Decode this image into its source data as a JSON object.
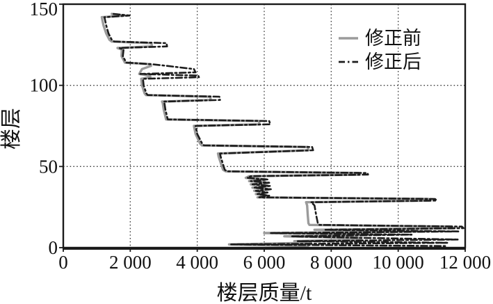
{
  "figure": {
    "background": "#ffffff",
    "axis_color": "#1a1a1a",
    "grid_color": "#3a3a3a",
    "text_color": "#111111"
  },
  "chart_data": {
    "type": "line",
    "title": "",
    "xlabel": "楼层质量/t",
    "ylabel": "楼层",
    "xlim": [
      0,
      12000
    ],
    "ylim": [
      0,
      150
    ],
    "x_ticks": [
      0,
      2000,
      4000,
      6000,
      8000,
      10000,
      12000
    ],
    "x_tick_labels": [
      "0",
      "2 000",
      "4 000",
      "6 000",
      "8 000",
      "10 000",
      "12 000"
    ],
    "y_ticks": [
      0,
      50,
      100,
      150
    ],
    "y_tick_labels": [
      "0",
      "50",
      "100",
      "150"
    ],
    "grid": {
      "style": "dotted",
      "x_at": [
        2000,
        4000,
        6000,
        8000,
        10000
      ],
      "y_at": [
        50,
        100
      ]
    },
    "legend_position": "upper-right-inside",
    "point_format": "[floor, mass_t]",
    "series": [
      {
        "name": "修正前",
        "color": "#9b9b9b",
        "line_style": "solid",
        "line_width": 3.4,
        "points": [
          [
            144,
            1450
          ],
          [
            143,
            1840
          ],
          [
            142,
            1150
          ],
          [
            137,
            1200
          ],
          [
            132,
            1280
          ],
          [
            128,
            1380
          ],
          [
            127,
            1450
          ],
          [
            126,
            2630
          ],
          [
            124,
            2650
          ],
          [
            123,
            1620
          ],
          [
            122,
            1750
          ],
          [
            118,
            1740
          ],
          [
            114,
            1840
          ],
          [
            113,
            2600
          ],
          [
            112,
            2620
          ],
          [
            110,
            2350
          ],
          [
            107,
            2270
          ],
          [
            106,
            2590
          ],
          [
            105,
            2600
          ],
          [
            104,
            2330
          ],
          [
            100,
            2350
          ],
          [
            95,
            2430
          ],
          [
            94,
            2470
          ],
          [
            93,
            4390
          ],
          [
            91,
            4400
          ],
          [
            90,
            2950
          ],
          [
            89,
            2970
          ],
          [
            85,
            3000
          ],
          [
            79,
            3070
          ],
          [
            78,
            5840
          ],
          [
            76,
            5860
          ],
          [
            75,
            3900
          ],
          [
            70,
            3950
          ],
          [
            64,
            4090
          ],
          [
            63,
            4140
          ],
          [
            62,
            7300
          ],
          [
            60,
            7320
          ],
          [
            58,
            4620
          ],
          [
            56,
            4640
          ],
          [
            48,
            4770
          ],
          [
            47,
            4850
          ],
          [
            46,
            8820
          ],
          [
            45,
            8840
          ],
          [
            44,
            5550
          ],
          [
            43,
            5450
          ],
          [
            42,
            6050
          ],
          [
            41,
            5550
          ],
          [
            40,
            6100
          ],
          [
            39,
            5600
          ],
          [
            38,
            6130
          ],
          [
            37,
            5650
          ],
          [
            36,
            6150
          ],
          [
            35,
            5700
          ],
          [
            34,
            6050
          ],
          [
            33,
            5750
          ],
          [
            32,
            6100
          ],
          [
            31,
            5800
          ],
          [
            30,
            10900
          ],
          [
            29,
            10950
          ],
          [
            28,
            7250
          ],
          [
            26,
            7280
          ],
          [
            20,
            7300
          ],
          [
            15,
            7320
          ],
          [
            14,
            7350
          ],
          [
            13,
            11600
          ],
          [
            12,
            11650
          ],
          [
            11,
            7500
          ],
          [
            10,
            10800
          ],
          [
            9,
            6000
          ],
          [
            8,
            9500
          ],
          [
            7,
            6600
          ],
          [
            6,
            8800
          ],
          [
            5,
            8900
          ],
          [
            4,
            6900
          ],
          [
            3,
            7400
          ],
          [
            2,
            4950
          ],
          [
            1,
            7300
          ]
        ]
      },
      {
        "name": "修正后",
        "color": "#1c1c1c",
        "line_style": "dash-dot",
        "line_width": 2.6,
        "points": [
          [
            144,
            1500
          ],
          [
            143,
            1980
          ],
          [
            142,
            1230
          ],
          [
            137,
            1280
          ],
          [
            132,
            1350
          ],
          [
            128,
            1450
          ],
          [
            127,
            1520
          ],
          [
            126,
            3080
          ],
          [
            124,
            3100
          ],
          [
            123,
            1680
          ],
          [
            122,
            1800
          ],
          [
            118,
            1780
          ],
          [
            114,
            1880
          ],
          [
            113,
            2650
          ],
          [
            112,
            3100
          ],
          [
            110,
            3900
          ],
          [
            108,
            3950
          ],
          [
            107,
            2300
          ],
          [
            106,
            4030
          ],
          [
            105,
            4050
          ],
          [
            104,
            2380
          ],
          [
            100,
            2400
          ],
          [
            95,
            2480
          ],
          [
            94,
            2520
          ],
          [
            93,
            4660
          ],
          [
            91,
            4680
          ],
          [
            90,
            3000
          ],
          [
            89,
            3020
          ],
          [
            85,
            3050
          ],
          [
            79,
            3120
          ],
          [
            78,
            6150
          ],
          [
            76,
            6180
          ],
          [
            75,
            3950
          ],
          [
            70,
            4000
          ],
          [
            64,
            4150
          ],
          [
            63,
            4200
          ],
          [
            62,
            7430
          ],
          [
            60,
            7460
          ],
          [
            58,
            4680
          ],
          [
            56,
            4700
          ],
          [
            48,
            4820
          ],
          [
            47,
            4900
          ],
          [
            46,
            9080
          ],
          [
            45,
            9100
          ],
          [
            44,
            5600
          ],
          [
            43,
            5500
          ],
          [
            42,
            6100
          ],
          [
            41,
            5600
          ],
          [
            40,
            6150
          ],
          [
            39,
            5650
          ],
          [
            38,
            6180
          ],
          [
            37,
            5700
          ],
          [
            36,
            6200
          ],
          [
            35,
            5750
          ],
          [
            34,
            6100
          ],
          [
            33,
            5800
          ],
          [
            32,
            6150
          ],
          [
            31,
            5850
          ],
          [
            30,
            11100
          ],
          [
            29,
            11150
          ],
          [
            28,
            7400
          ],
          [
            26,
            7500
          ],
          [
            20,
            7550
          ],
          [
            15,
            7600
          ],
          [
            14,
            7650
          ],
          [
            13,
            11900
          ],
          [
            12,
            11950
          ],
          [
            11,
            7800
          ],
          [
            10,
            11800
          ],
          [
            9,
            6200
          ],
          [
            8,
            10400
          ],
          [
            7,
            6800
          ],
          [
            6,
            9000
          ],
          [
            5,
            11800
          ],
          [
            4,
            7000
          ],
          [
            3,
            11500
          ],
          [
            2,
            5000
          ],
          [
            1,
            11400
          ]
        ]
      }
    ]
  }
}
